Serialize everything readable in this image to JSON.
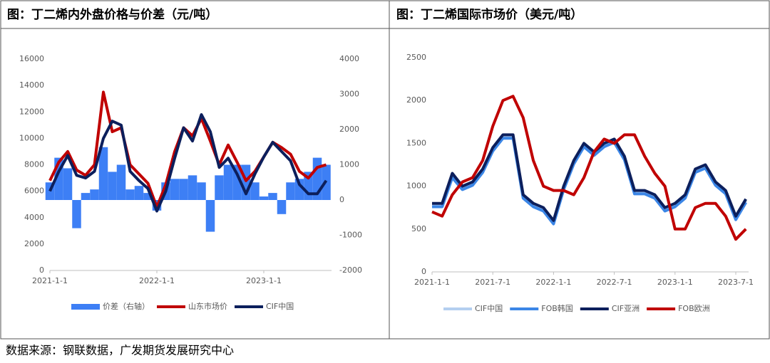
{
  "chart_data": [
    {
      "type": "line",
      "title": "图：丁二烯内外盘价格与价差（元/吨）",
      "categories": [
        "2021-1-1",
        null,
        null,
        null,
        null,
        null,
        null,
        null,
        null,
        null,
        null,
        null,
        "2022-1-1",
        null,
        null,
        null,
        null,
        null,
        null,
        null,
        null,
        null,
        null,
        null,
        "2023-1-1",
        null,
        null,
        null,
        null,
        null,
        null,
        null
      ],
      "series": [
        {
          "name": "价差（右轴）",
          "type": "bar",
          "axis": "y2",
          "color": "#3d7ff5",
          "values": [
            500,
            1200,
            900,
            -800,
            200,
            300,
            1500,
            800,
            1000,
            300,
            400,
            200,
            -300,
            500,
            600,
            600,
            700,
            500,
            -900,
            700,
            1000,
            1000,
            1000,
            500,
            100,
            200,
            -400,
            500,
            600,
            800,
            1200,
            1000
          ]
        },
        {
          "name": "山东市场价",
          "color": "#c00000",
          "values": [
            6800,
            8200,
            9000,
            7600,
            7200,
            8000,
            13500,
            10500,
            10800,
            8000,
            7300,
            6600,
            4800,
            6500,
            9000,
            10800,
            10200,
            11500,
            9800,
            8000,
            9500,
            8200,
            6800,
            7500,
            8600,
            9700,
            9300,
            8800,
            7500,
            7000,
            7800,
            8000
          ]
        },
        {
          "name": "CIF中国",
          "color": "#0c1f5c",
          "values": [
            6000,
            7500,
            8700,
            7200,
            7000,
            7500,
            10000,
            11300,
            11000,
            7500,
            6800,
            6200,
            4500,
            6000,
            8500,
            10800,
            9800,
            11800,
            10500,
            7800,
            8500,
            7300,
            5800,
            7300,
            8600,
            9700,
            9000,
            8300,
            6500,
            5800,
            5800,
            6800
          ]
        }
      ],
      "ylim": [
        0,
        16000
      ],
      "yticks": [
        0,
        2000,
        4000,
        6000,
        8000,
        10000,
        12000,
        14000,
        16000
      ],
      "y2lim": [
        -2000,
        4000
      ],
      "y2ticks": [
        -2000,
        -1000,
        0,
        1000,
        2000,
        3000,
        4000
      ],
      "legend": "bottom"
    },
    {
      "type": "line",
      "title": "图：丁二烯国际市场价（美元/吨）",
      "categories": [
        "2021-1-1",
        null,
        null,
        null,
        null,
        null,
        "2021-7-1",
        null,
        null,
        null,
        null,
        null,
        "2022-1-1",
        null,
        null,
        null,
        null,
        null,
        "2022-7-1",
        null,
        null,
        null,
        null,
        null,
        "2023-1-1",
        null,
        null,
        null,
        null,
        null,
        "2023-7-1",
        null
      ],
      "series": [
        {
          "name": "CIF中国",
          "color": "#b4cff0",
          "values": [
            780,
            780,
            1120,
            980,
            1030,
            1180,
            1430,
            1580,
            1580,
            880,
            780,
            730,
            580,
            980,
            1280,
            1480,
            1380,
            1480,
            1530,
            1330,
            930,
            930,
            880,
            730,
            780,
            880,
            1180,
            1230,
            1030,
            930,
            630,
            830
          ]
        },
        {
          "name": "FOB韩国",
          "color": "#3b86e6",
          "values": [
            760,
            760,
            1100,
            960,
            1010,
            1160,
            1410,
            1560,
            1560,
            860,
            760,
            710,
            560,
            960,
            1260,
            1460,
            1360,
            1460,
            1510,
            1310,
            910,
            910,
            860,
            710,
            760,
            860,
            1160,
            1210,
            1010,
            910,
            610,
            810
          ]
        },
        {
          "name": "CIF亚洲",
          "color": "#0c1f5c",
          "values": [
            800,
            800,
            1150,
            1000,
            1050,
            1200,
            1450,
            1600,
            1600,
            900,
            800,
            750,
            600,
            1000,
            1300,
            1500,
            1400,
            1500,
            1550,
            1350,
            950,
            950,
            900,
            750,
            800,
            900,
            1200,
            1250,
            1050,
            950,
            650,
            850
          ]
        },
        {
          "name": "FOB欧洲",
          "color": "#c00000",
          "values": [
            700,
            650,
            900,
            1050,
            1100,
            1300,
            1700,
            2000,
            2050,
            1800,
            1300,
            1000,
            950,
            950,
            900,
            1100,
            1400,
            1550,
            1500,
            1600,
            1600,
            1350,
            1150,
            1000,
            500,
            500,
            750,
            800,
            800,
            650,
            380,
            500
          ]
        }
      ],
      "ylim": [
        0,
        2500
      ],
      "yticks": [
        0,
        500,
        1000,
        1500,
        2000,
        2500
      ],
      "legend": "bottom"
    }
  ],
  "source": "数据来源：钢联数据，广发期货发展研究中心"
}
